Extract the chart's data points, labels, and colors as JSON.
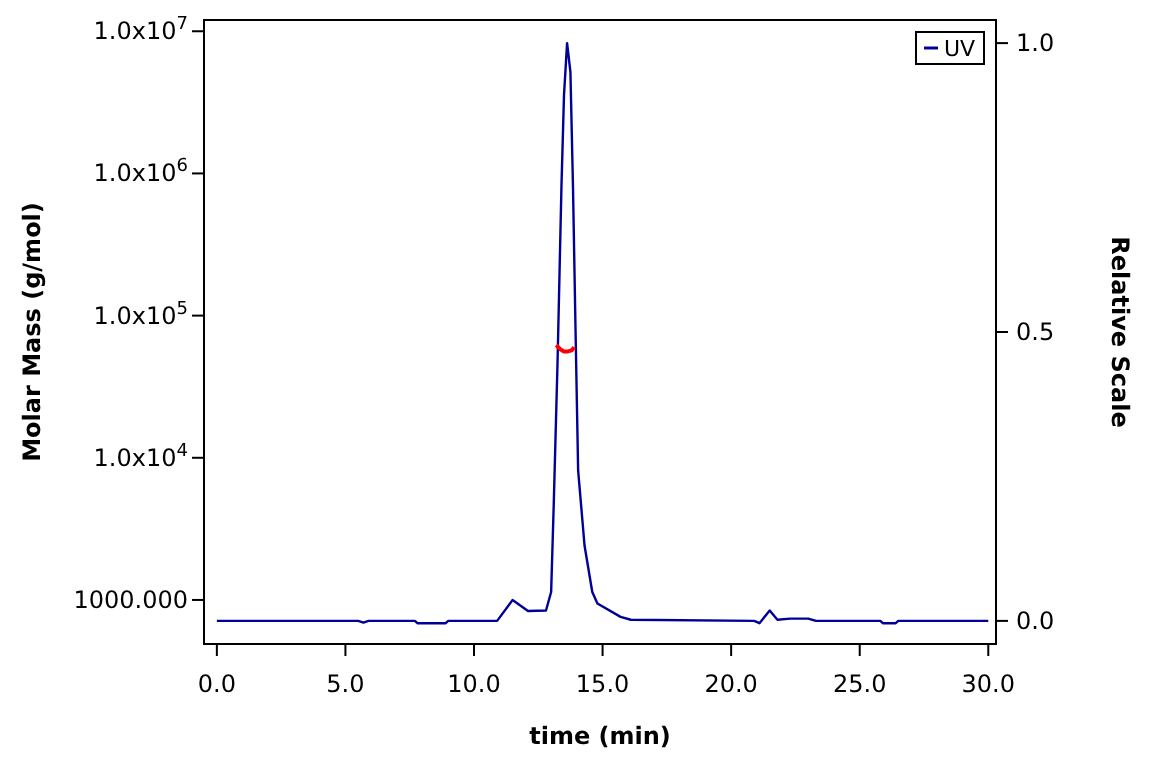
{
  "chart_data": {
    "type": "line",
    "xlabel": "time (min)",
    "ylabel": "Molar Mass (g/mol)",
    "y2label": "Relative Scale",
    "xlim": [
      -0.5,
      30.3
    ],
    "xticks": [
      {
        "value": 0,
        "label": "0.0"
      },
      {
        "value": 5,
        "label": "5.0"
      },
      {
        "value": 10,
        "label": "10.0"
      },
      {
        "value": 15,
        "label": "15.0"
      },
      {
        "value": 20,
        "label": "20.0"
      },
      {
        "value": 25,
        "label": "25.0"
      },
      {
        "value": 30,
        "label": "30.0"
      }
    ],
    "ylim": [
      490,
      12000000
    ],
    "yticks": [
      {
        "value": 1000,
        "label": "1000.000"
      },
      {
        "value": 10000,
        "label": "1.0x10$^{4}$"
      },
      {
        "value": 100000,
        "label": "1.0x10$^{5}$"
      },
      {
        "value": 1000000,
        "label": "1.0x10$^{6}$"
      },
      {
        "value": 10000000,
        "label": "1.0x10$^{7}$"
      }
    ],
    "y2lim": [
      -0.04,
      1.04
    ],
    "y2ticks": [
      {
        "value": 0,
        "label": "0.0"
      },
      {
        "value": 0.5,
        "label": "0.5"
      },
      {
        "value": 1,
        "label": "1.0"
      }
    ],
    "log": "y",
    "grid": false,
    "legend": "top right",
    "marker": "none",
    "line_style": "solid",
    "series": [
      {
        "name": "UV",
        "color": "#000099",
        "axis": "y2",
        "x": [
          0,
          5.5,
          5.7,
          5.9,
          7.7,
          7.8,
          8.9,
          9.0,
          10.9,
          11.5,
          12.1,
          12.8,
          13.0,
          13.1,
          13.25,
          13.4,
          13.5,
          13.62,
          13.75,
          13.85,
          13.95,
          14.05,
          14.3,
          14.6,
          14.8,
          15.7,
          16.1,
          20.9,
          21.1,
          21.5,
          21.8,
          22.3,
          23.0,
          23.3,
          25.8,
          25.9,
          26.4,
          26.5,
          30
        ],
        "values": [
          0,
          0,
          -0.003,
          0,
          0,
          -0.004,
          -0.004,
          0,
          0,
          0.036,
          0.017,
          0.018,
          0.05,
          0.2,
          0.45,
          0.75,
          0.91,
          1.0,
          0.95,
          0.75,
          0.5,
          0.26,
          0.13,
          0.05,
          0.03,
          0.007,
          0.002,
          0,
          -0.004,
          0.018,
          0.002,
          0.004,
          0.004,
          0,
          0,
          -0.004,
          -0.004,
          0,
          0
        ]
      },
      {
        "color": "#ff0000",
        "x": [
          13.2,
          13.35,
          13.5,
          13.65,
          13.8,
          13.9
        ],
        "values": [
          62000,
          58000,
          56000,
          56000,
          57000,
          60000
        ]
      }
    ]
  }
}
